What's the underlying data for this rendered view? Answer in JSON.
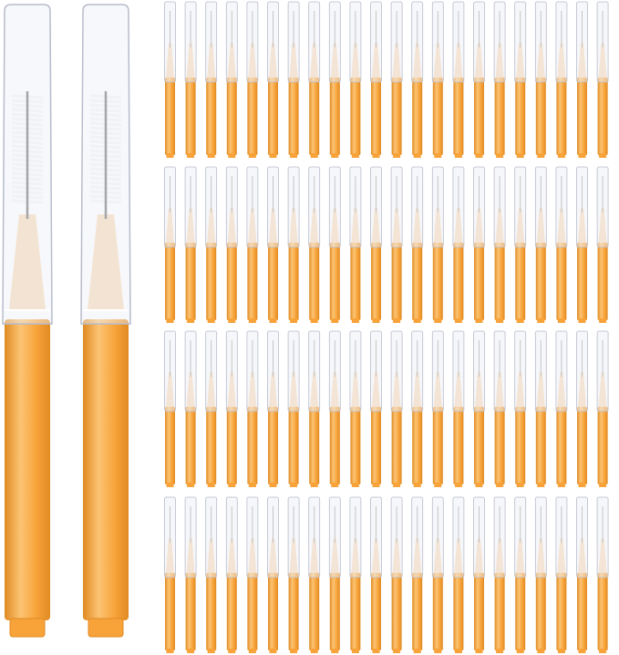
{
  "image": {
    "subject": "interdental-brushes",
    "large_brush_count": 2,
    "small_brush_grid": {
      "rows": 4,
      "columns": 22
    },
    "colors": {
      "background": "#ffffff",
      "handle_orange": "#f7a33a",
      "handle_shadow": "#e08a22",
      "handle_highlight": "#fcc474",
      "cap_clear": "#eef0f6",
      "cap_edge": "#b8bccb",
      "neck_peach": "#f8d9b4",
      "bristles": "#f4f4f4",
      "wire": "#6b6b6b"
    }
  }
}
